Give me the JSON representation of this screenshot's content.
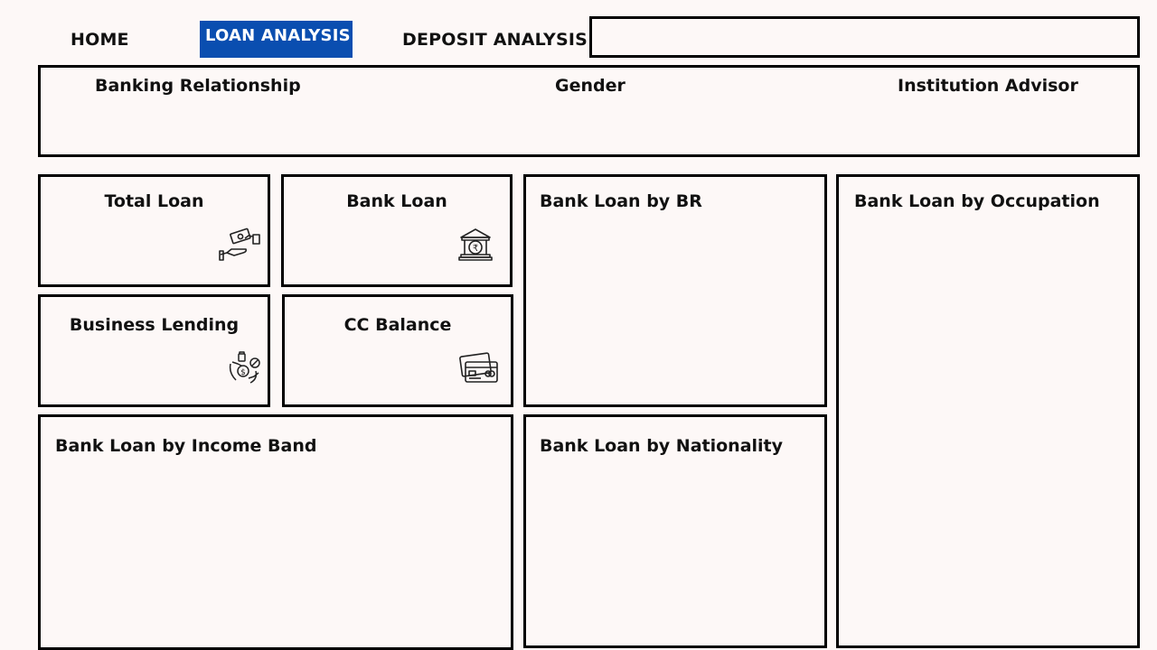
{
  "nav": {
    "home": "HOME",
    "loan_analysis": "LOAN ANALYSIS",
    "deposit_analysis": "DEPOSIT ANALYSIS"
  },
  "filters": {
    "banking_relationship": "Banking Relationship",
    "gender": "Gender",
    "institution_advisor": "Institution Advisor"
  },
  "kpis": {
    "total_loan": {
      "label": "Total Loan",
      "icon": "hand-money-icon"
    },
    "bank_loan": {
      "label": "Bank Loan",
      "icon": "bank-rupee-icon"
    },
    "business_lending": {
      "label": "Business Lending",
      "icon": "business-lending-icon"
    },
    "cc_balance": {
      "label": "CC Balance",
      "icon": "credit-card-icon"
    }
  },
  "charts": {
    "by_br": "Bank Loan by BR",
    "by_occupation": "Bank Loan by Occupation",
    "by_income_band": "Bank Loan by Income Band",
    "by_nationality": "Bank Loan by Nationality"
  },
  "colors": {
    "accent": "#0a4eb0",
    "background": "#fdf8f7",
    "border": "#000000"
  }
}
